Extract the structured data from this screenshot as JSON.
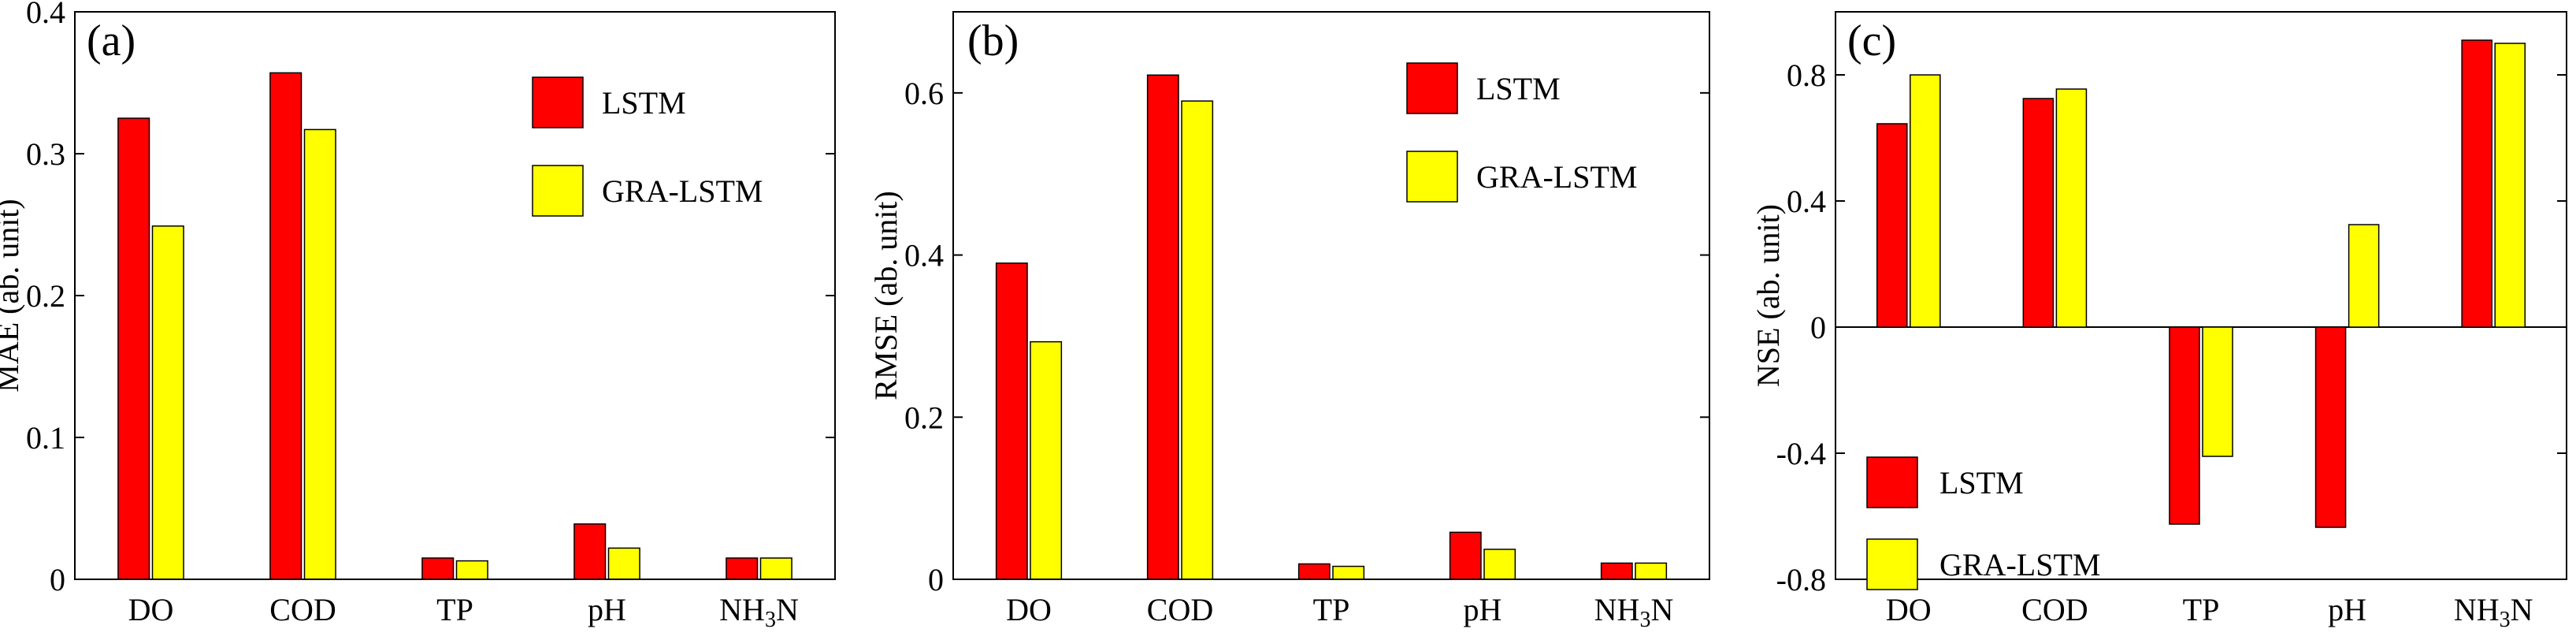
{
  "colors": {
    "lstm": "#ff0000",
    "gra_lstm": "#ffff00",
    "axis": "#000000",
    "background": "#ffffff"
  },
  "chart_data": [
    {
      "id": "mae",
      "type": "bar",
      "panel_label": "(a)",
      "ylabel": "MAE (ab. unit)",
      "categories": [
        "DO",
        "COD",
        "TP",
        "pH",
        "NH3N"
      ],
      "category_labels": [
        {
          "text": "DO"
        },
        {
          "text": "COD"
        },
        {
          "text": "TP"
        },
        {
          "text": "pH"
        },
        {
          "text": "NH",
          "sub": "3",
          "tail": "N"
        }
      ],
      "ylim": [
        0,
        0.4
      ],
      "yticks": [
        0,
        0.1,
        0.2,
        0.3,
        0.4
      ],
      "ytick_labels": [
        "0",
        "0.1",
        "0.2",
        "0.3",
        "0.4"
      ],
      "legend_position": "top-right",
      "series": [
        {
          "name": "LSTM",
          "values": [
            0.325,
            0.357,
            0.015,
            0.039,
            0.015
          ]
        },
        {
          "name": "GRA-LSTM",
          "values": [
            0.249,
            0.317,
            0.013,
            0.022,
            0.015
          ]
        }
      ]
    },
    {
      "id": "rmse",
      "type": "bar",
      "panel_label": "(b)",
      "ylabel": "RMSE (ab. unit)",
      "categories": [
        "DO",
        "COD",
        "TP",
        "pH",
        "NH3N"
      ],
      "category_labels": [
        {
          "text": "DO"
        },
        {
          "text": "COD"
        },
        {
          "text": "TP"
        },
        {
          "text": "pH"
        },
        {
          "text": "NH",
          "sub": "3",
          "tail": "N"
        }
      ],
      "ylim": [
        0,
        0.7
      ],
      "yticks": [
        0,
        0.2,
        0.4,
        0.6
      ],
      "ytick_labels": [
        "0",
        "0.2",
        "0.4",
        "0.6"
      ],
      "legend_position": "top-right",
      "series": [
        {
          "name": "LSTM",
          "values": [
            0.39,
            0.622,
            0.019,
            0.058,
            0.02
          ]
        },
        {
          "name": "GRA-LSTM",
          "values": [
            0.293,
            0.59,
            0.016,
            0.037,
            0.02
          ]
        }
      ]
    },
    {
      "id": "nse",
      "type": "bar",
      "panel_label": "(c)",
      "ylabel": "NSE (ab. unit)",
      "categories": [
        "DO",
        "COD",
        "TP",
        "pH",
        "NH3N"
      ],
      "category_labels": [
        {
          "text": "DO"
        },
        {
          "text": "COD"
        },
        {
          "text": "TP"
        },
        {
          "text": "pH"
        },
        {
          "text": "NH",
          "sub": "3",
          "tail": "N"
        }
      ],
      "ylim": [
        -0.8,
        1.0
      ],
      "yticks": [
        -0.8,
        -0.4,
        0,
        0.4,
        0.8
      ],
      "ytick_labels": [
        "-0.8",
        "-0.4",
        "0",
        "0.4",
        "0.8"
      ],
      "legend_position": "bottom-left",
      "series": [
        {
          "name": "LSTM",
          "values": [
            0.645,
            0.725,
            -0.625,
            -0.635,
            0.91
          ]
        },
        {
          "name": "GRA-LSTM",
          "values": [
            0.8,
            0.755,
            -0.41,
            0.325,
            0.9
          ]
        }
      ]
    }
  ]
}
